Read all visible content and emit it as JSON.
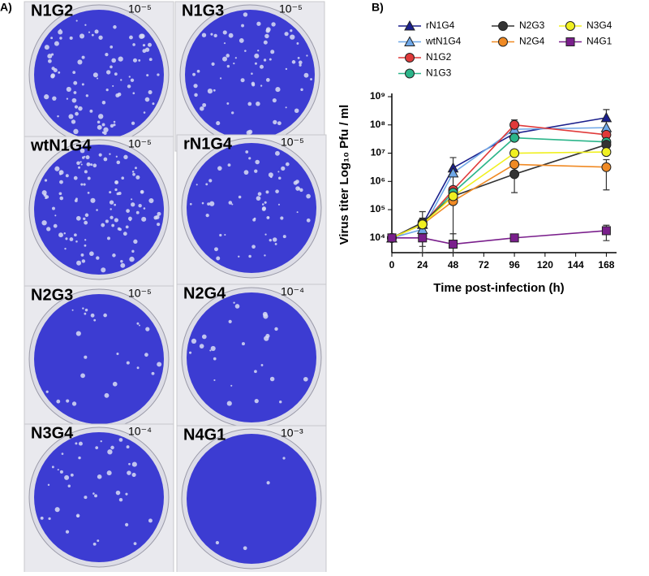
{
  "panel_a": {
    "label": "A)",
    "plates": [
      {
        "name": "N1G2",
        "dilution": "10⁻⁵"
      },
      {
        "name": "N1G3",
        "dilution": "10⁻⁵"
      },
      {
        "name": "wtN1G4",
        "dilution": "10⁻⁵"
      },
      {
        "name": "rN1G4",
        "dilution": "10⁻⁵"
      },
      {
        "name": "N2G3",
        "dilution": "10⁻⁵"
      },
      {
        "name": "N2G4",
        "dilution": "10⁻⁴"
      },
      {
        "name": "N3G4",
        "dilution": "10⁻⁴"
      },
      {
        "name": "N4G1",
        "dilution": "10⁻³"
      }
    ]
  },
  "chart_data": {
    "type": "line",
    "panel_label": "B)",
    "x_label": "Time post-infection (h)",
    "y_label": "Virus titer Log₁₀ Pfu / ml",
    "log_y": true,
    "x": [
      0,
      24,
      48,
      96,
      168
    ],
    "xlim": [
      0,
      176
    ],
    "xticks": [
      0,
      24,
      48,
      72,
      96,
      120,
      144,
      168
    ],
    "ylim": [
      3000,
      1000000000
    ],
    "yticks": [
      {
        "value": 10000,
        "label": "10⁴"
      },
      {
        "value": 100000,
        "label": "10⁵"
      },
      {
        "value": 1000000,
        "label": "10⁶"
      },
      {
        "value": 10000000,
        "label": "10⁷"
      },
      {
        "value": 100000000,
        "label": "10⁸"
      },
      {
        "value": 1000000000,
        "label": "10⁹"
      }
    ],
    "series": [
      {
        "name": "rN1G4",
        "color": "#1a1f8c",
        "marker": "triangle",
        "values": [
          10000,
          30000,
          3000000,
          50000000,
          180000000
        ],
        "errors": [
          null,
          20000,
          4000000,
          null,
          170000000
        ]
      },
      {
        "name": "wtN1G4",
        "color": "#6fa8e8",
        "marker": "triangle",
        "values": [
          10000,
          20000,
          2000000,
          70000000,
          80000000
        ],
        "errors": [
          null,
          null,
          null,
          null,
          null
        ]
      },
      {
        "name": "N1G2",
        "color": "#e03a3a",
        "marker": "circle",
        "values": [
          10000,
          30000,
          500000,
          100000000,
          45000000
        ],
        "errors": [
          null,
          null,
          null,
          50000000,
          null
        ]
      },
      {
        "name": "N1G3",
        "color": "#2cb58a",
        "marker": "circle",
        "values": [
          10000,
          30000,
          400000,
          35000000,
          25000000
        ],
        "errors": [
          null,
          null,
          null,
          null,
          null
        ]
      },
      {
        "name": "N2G3",
        "color": "#333333",
        "marker": "circle",
        "values": [
          10000,
          35000,
          300000,
          1800000,
          20000000
        ],
        "errors": [
          null,
          50000,
          null,
          1400000,
          null
        ]
      },
      {
        "name": "N2G4",
        "color": "#f08a24",
        "marker": "circle",
        "values": [
          10000,
          30000,
          200000,
          4000000,
          3200000
        ],
        "errors": [
          null,
          null,
          null,
          null,
          2700000
        ]
      },
      {
        "name": "N3G4",
        "color": "#f0f020",
        "marker": "circle",
        "values": [
          10000,
          30000,
          300000,
          10000000,
          11000000
        ],
        "errors": [
          null,
          null,
          null,
          null,
          null
        ]
      },
      {
        "name": "N4G1",
        "color": "#7a1f8c",
        "marker": "square",
        "values": [
          10000,
          10000,
          6000,
          10000,
          18000
        ],
        "errors": [
          null,
          5000,
          8000,
          null,
          10000
        ]
      }
    ]
  }
}
